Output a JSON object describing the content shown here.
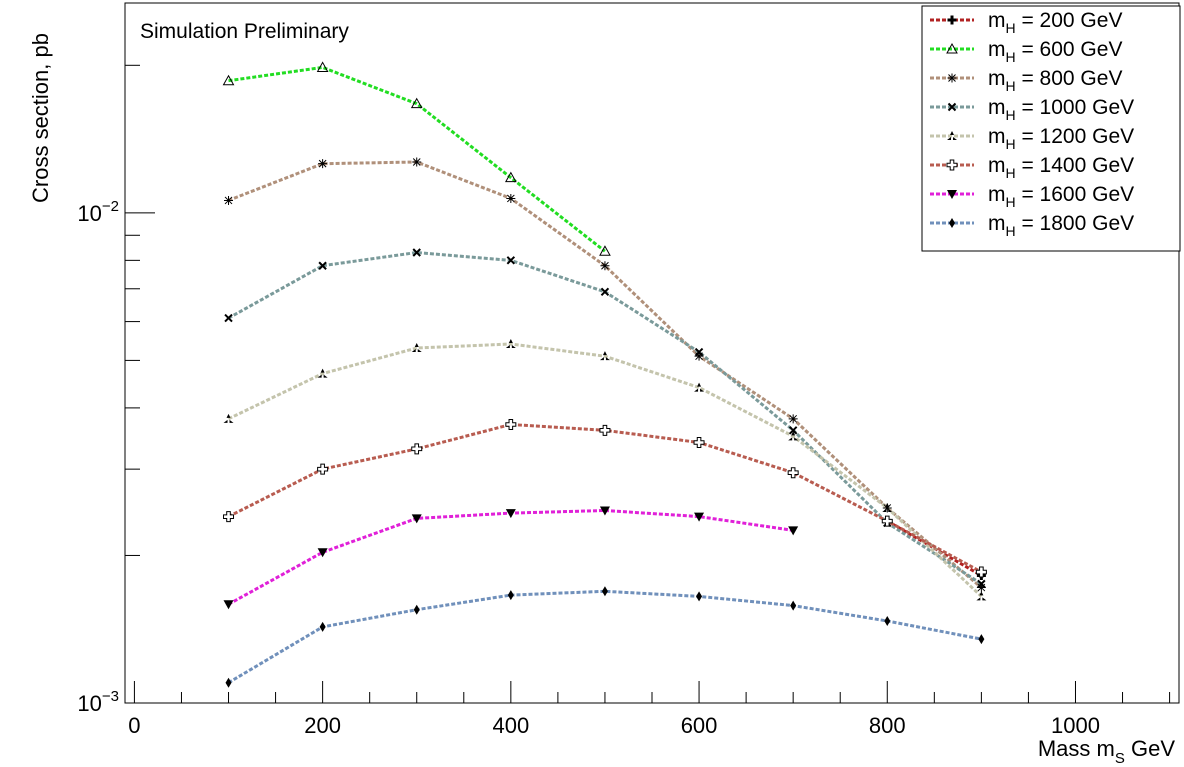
{
  "chart_data": {
    "type": "line",
    "annotation": "Simulation Preliminary",
    "xlabel": {
      "main": "Mass m",
      "sub": "S",
      "unit": " GeV"
    },
    "ylabel": "Cross section, pb",
    "xlim": [
      -10,
      1110
    ],
    "ylim": [
      0.001,
      0.0268
    ],
    "yscale": "log",
    "grid": false,
    "legend_position": "top-right",
    "x_ticks": [
      0,
      200,
      400,
      600,
      800,
      1000
    ],
    "y_ticks": [
      {
        "value": 0.01,
        "base": "10",
        "exp": "−2"
      },
      {
        "value": 0.001,
        "base": "10",
        "exp": "−3"
      }
    ],
    "series": [
      {
        "name": {
          "pre": "m",
          "sub": "H",
          "post": " = 200 GeV"
        },
        "color": "#b22222",
        "marker": "plus",
        "x": [
          800,
          900
        ],
        "y": [
          0.00235,
          0.00182
        ]
      },
      {
        "name": {
          "pre": "m",
          "sub": "H",
          "post": " = 600 GeV"
        },
        "color": "#22dd22",
        "marker": "triangle-open",
        "x": [
          100,
          200,
          300,
          400,
          500
        ],
        "y": [
          0.0186,
          0.0198,
          0.0167,
          0.0118,
          0.00835
        ]
      },
      {
        "name": {
          "pre": "m",
          "sub": "H",
          "post": " = 800 GeV"
        },
        "color": "#b0907a",
        "marker": "star",
        "x": [
          100,
          200,
          300,
          400,
          500,
          600,
          700,
          800,
          900
        ],
        "y": [
          0.0106,
          0.0126,
          0.0127,
          0.0107,
          0.0078,
          0.0051,
          0.0038,
          0.0025,
          0.00172
        ]
      },
      {
        "name": {
          "pre": "m",
          "sub": "H",
          "post": " = 1000 GeV"
        },
        "color": "#7a9a9a",
        "marker": "x",
        "x": [
          100,
          200,
          300,
          400,
          500,
          600,
          700,
          800,
          900
        ],
        "y": [
          0.0061,
          0.0078,
          0.0083,
          0.008,
          0.0069,
          0.0052,
          0.0036,
          0.00233,
          0.00175
        ]
      },
      {
        "name": {
          "pre": "m",
          "sub": "H",
          "post": " = 1200 GeV"
        },
        "color": "#c4c4ac",
        "marker": "tri-star",
        "x": [
          100,
          200,
          300,
          400,
          500,
          600,
          700,
          800,
          900
        ],
        "y": [
          0.0038,
          0.0047,
          0.0053,
          0.0054,
          0.0051,
          0.0044,
          0.0035,
          0.0025,
          0.00165
        ]
      },
      {
        "name": {
          "pre": "m",
          "sub": "H",
          "post": " = 1400 GeV"
        },
        "color": "#b85c50",
        "marker": "open-cross",
        "x": [
          100,
          200,
          300,
          400,
          500,
          600,
          700,
          800,
          900
        ],
        "y": [
          0.0024,
          0.003,
          0.0033,
          0.0037,
          0.0036,
          0.0034,
          0.00295,
          0.00235,
          0.00185
        ]
      },
      {
        "name": {
          "pre": "m",
          "sub": "H",
          "post": " = 1600 GeV"
        },
        "color": "#e020d8",
        "marker": "triangle-down",
        "x": [
          100,
          200,
          300,
          400,
          500,
          600,
          700
        ],
        "y": [
          0.00159,
          0.00203,
          0.00238,
          0.00244,
          0.00247,
          0.0024,
          0.00225
        ]
      },
      {
        "name": {
          "pre": "m",
          "sub": "H",
          "post": " = 1800 GeV"
        },
        "color": "#7090bb",
        "marker": "diamond",
        "x": [
          100,
          200,
          300,
          400,
          500,
          600,
          700,
          800,
          900
        ],
        "y": [
          0.0011,
          0.00143,
          0.00155,
          0.00166,
          0.00169,
          0.00165,
          0.00158,
          0.00147,
          0.00135
        ]
      }
    ]
  }
}
